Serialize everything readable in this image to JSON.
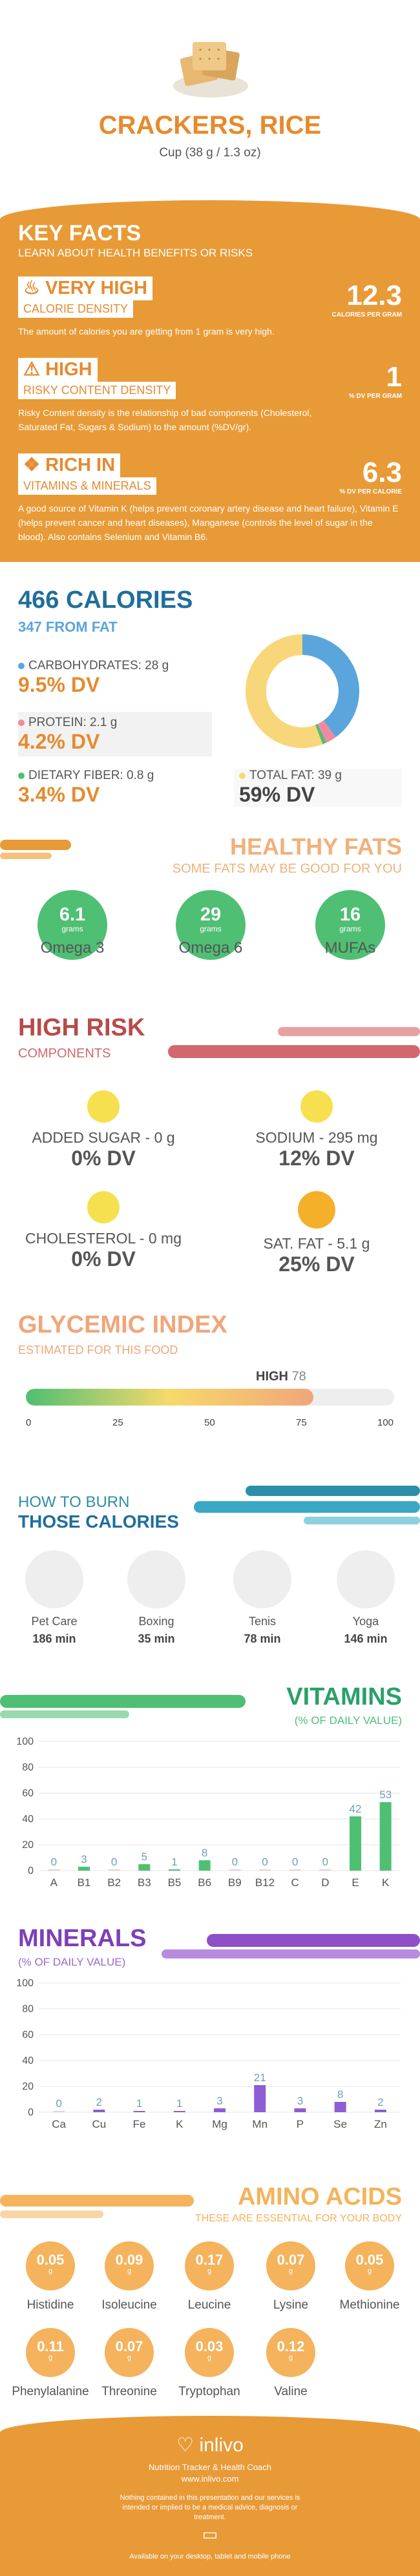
{
  "header": {
    "title": "CRACKERS, RICE",
    "serving": "Cup (38 g / 1.3 oz)"
  },
  "key_facts": {
    "title": "KEY FACTS",
    "subtitle": "LEARN ABOUT HEALTH BENEFITS OR RISKS",
    "items": [
      {
        "badge": "VERY HIGH",
        "label": "CALORIE DENSITY",
        "value": "12.3",
        "unit": "CALORIES PER GRAM",
        "desc": "The amount of calories you are getting from 1 gram is very high.",
        "icon": "fire-icon"
      },
      {
        "badge": "HIGH",
        "label": "RISKY CONTENT DENSITY",
        "value": "1",
        "unit": "% DV PER GRAM",
        "desc": "Risky Content density is the relationship of bad components (Cholesterol, Saturated Fat, Sugars & Sodium) to the amount (%DV/gr).",
        "icon": "warning-icon"
      },
      {
        "badge": "RICH IN",
        "label": "VITAMINS & MINERALS",
        "value": "6.3",
        "unit": "% DV PER CALORIE",
        "desc": "A good source of Vitamin K (helps prevent coronary artery disease and heart failure), Vitamin E (helps prevent cancer and heart diseases), Manganese (controls the level of sugar in the blood). Also contains Selenium and Vitamin B6.",
        "icon": "leaf-icon"
      }
    ]
  },
  "calories": {
    "title": "466 CALORIES",
    "from_fat": "347 FROM FAT",
    "carbs_label": "CARBOHYDRATES: 28 g",
    "carbs_dv": "9.5% DV",
    "protein_label": "PROTEIN: 2.1 g",
    "protein_dv": "4.2% DV",
    "fiber_label": "DIETARY FIBER: 0.8 g",
    "fiber_dv": "3.4% DV",
    "fat_label": "TOTAL FAT: 39 g",
    "fat_dv": "59% DV",
    "colors": {
      "carbs": "#5aa5dc",
      "protein": "#f08aa0",
      "fiber": "#4fbf73",
      "fat": "#f8d67a"
    }
  },
  "chart_data": {
    "type": "pie",
    "categories": [
      "Carbohydrates",
      "Protein",
      "Dietary Fiber",
      "Total Fat"
    ],
    "values": [
      28,
      2.1,
      0.8,
      39
    ]
  },
  "healthy_fats": {
    "title": "HEALTHY FATS",
    "subtitle": "SOME FATS MAY BE GOOD FOR YOU",
    "unit": "grams",
    "items": [
      {
        "value": "6.1",
        "name": "Omega 3"
      },
      {
        "value": "29",
        "name": "Omega 6"
      },
      {
        "value": "16",
        "name": "MUFAs"
      }
    ]
  },
  "high_risk": {
    "title": "HIGH RISK",
    "subtitle": "COMPONENTS",
    "items": [
      {
        "label": "ADDED SUGAR - 0 g",
        "dv": "0% DV"
      },
      {
        "label": "SODIUM - 295 mg",
        "dv": "12% DV"
      },
      {
        "label": "CHOLESTEROL - 0 mg",
        "dv": "0% DV"
      },
      {
        "label": "SAT. FAT - 5.1 g",
        "dv": "25% DV"
      }
    ]
  },
  "glycemic": {
    "title": "GLYCEMIC INDEX",
    "subtitle": "ESTIMATED FOR THIS FOOD",
    "level": "HIGH",
    "value": "78",
    "ticks": [
      "0",
      "25",
      "50",
      "75",
      "100"
    ]
  },
  "burn": {
    "title1": "HOW TO BURN",
    "title2": "THOSE CALORIES",
    "items": [
      {
        "name": "Pet Care",
        "value": "186 min"
      },
      {
        "name": "Boxing",
        "value": "35 min"
      },
      {
        "name": "Tenis",
        "value": "78 min"
      },
      {
        "name": "Yoga",
        "value": "146 min"
      }
    ]
  },
  "vitamins": {
    "title": "VITAMINS",
    "subtitle": "(% OF DAILY VALUE)",
    "y_ticks": [
      "100",
      "80",
      "60",
      "40",
      "20",
      "0"
    ],
    "categories": [
      "A",
      "B1",
      "B2",
      "B3",
      "B5",
      "B6",
      "B9",
      "B12",
      "C",
      "D",
      "E",
      "K"
    ],
    "values": [
      0,
      3,
      0,
      5,
      1,
      8,
      0,
      0,
      0,
      0,
      42,
      53
    ],
    "labels": [
      "0",
      "3",
      "0",
      "5",
      "1",
      "8",
      "0",
      "0",
      "0",
      "0",
      "42",
      "53"
    ]
  },
  "minerals": {
    "title": "MINERALS",
    "subtitle": "(% OF DAILY VALUE)",
    "y_ticks": [
      "100",
      "80",
      "60",
      "40",
      "20",
      "0"
    ],
    "categories": [
      "Ca",
      "Cu",
      "Fe",
      "K",
      "Mg",
      "Mn",
      "P",
      "Se",
      "Zn"
    ],
    "values": [
      0,
      2,
      1,
      1,
      3,
      21,
      3,
      8,
      2
    ],
    "labels": [
      "0",
      "2",
      "1",
      "1",
      "3",
      "21",
      "3",
      "8",
      "2"
    ]
  },
  "amino": {
    "title": "AMINO ACIDS",
    "subtitle": "THESE ARE ESSENTIAL FOR YOUR BODY",
    "unit": "g",
    "items": [
      {
        "value": "0.05",
        "name": "Histidine"
      },
      {
        "value": "0.09",
        "name": "Isoleucine"
      },
      {
        "value": "0.17",
        "name": "Leucine"
      },
      {
        "value": "0.07",
        "name": "Lysine"
      },
      {
        "value": "0.05",
        "name": "Methionine"
      },
      {
        "value": "0.11",
        "name": "Phenylalanine"
      },
      {
        "value": "0.07",
        "name": "Threonine"
      },
      {
        "value": "0.03",
        "name": "Tryptophan"
      },
      {
        "value": "0.12",
        "name": "Valine"
      }
    ]
  },
  "footer": {
    "brand": "inlivo",
    "tagline": "Nutrition Tracker & Health Coach",
    "url": "www.inlivo.com",
    "disclaimer": "Nothing contained in this presentation and our services is intended or implied to be a medical advice, diagnosis or treatment.",
    "available": "Available on your desktop, tablet and mobile phone"
  }
}
